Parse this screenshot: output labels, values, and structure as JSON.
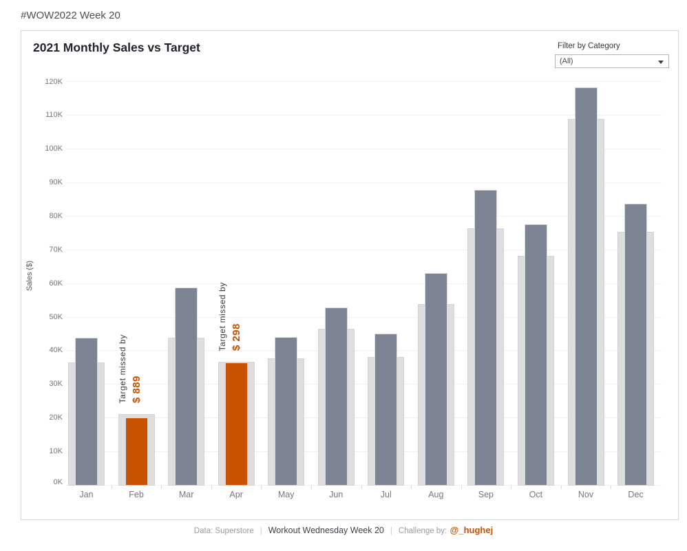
{
  "header": {
    "title": "#WOW2022 Week 20"
  },
  "chart": {
    "title": "2021 Monthly Sales vs Target",
    "filter_label": "Filter by Category",
    "filter_value": "(All)",
    "y_axis_label": "Sales ($)",
    "y_ticks": [
      "0K",
      "10K",
      "20K",
      "30K",
      "40K",
      "50K",
      "60K",
      "70K",
      "80K",
      "90K",
      "100K",
      "110K",
      "120K"
    ]
  },
  "chart_data": {
    "type": "bar",
    "title": "2021 Monthly Sales vs Target",
    "categories": [
      "Jan",
      "Feb",
      "Mar",
      "Apr",
      "May",
      "Jun",
      "Jul",
      "Aug",
      "Sep",
      "Oct",
      "Nov",
      "Dec"
    ],
    "series": [
      {
        "name": "Target",
        "values": [
          36700,
          21190,
          44000,
          36820,
          37800,
          46600,
          38300,
          54100,
          76600,
          68300,
          109000,
          75400
        ]
      },
      {
        "name": "Sales 2021",
        "values": [
          43971,
          20301,
          58872,
          36522,
          44261,
          52982,
          45264,
          63121,
          87867,
          77777,
          118448,
          83829
        ]
      }
    ],
    "annotations": [
      {
        "category": "Feb",
        "label": "Target missed by",
        "value_text": "$ 889"
      },
      {
        "category": "Apr",
        "label": "Target missed by",
        "value_text": "$ 298"
      }
    ],
    "ylabel": "Sales ($)",
    "ylim": [
      0,
      124000
    ],
    "ytick_step": 10000,
    "grid": "horizontal",
    "legend": "none",
    "colors": {
      "target_bar": "#dedede",
      "sales_met": "#7c8493",
      "sales_missed": "#c85200",
      "annotation_accent": "#c85200"
    }
  },
  "footer": {
    "data_source": "Data: Superstore",
    "separator": "|",
    "challenge_name": "Workout Wednesday Week 20",
    "challenge_by_label": "Challenge by:",
    "author_handle": "@_hughej"
  }
}
